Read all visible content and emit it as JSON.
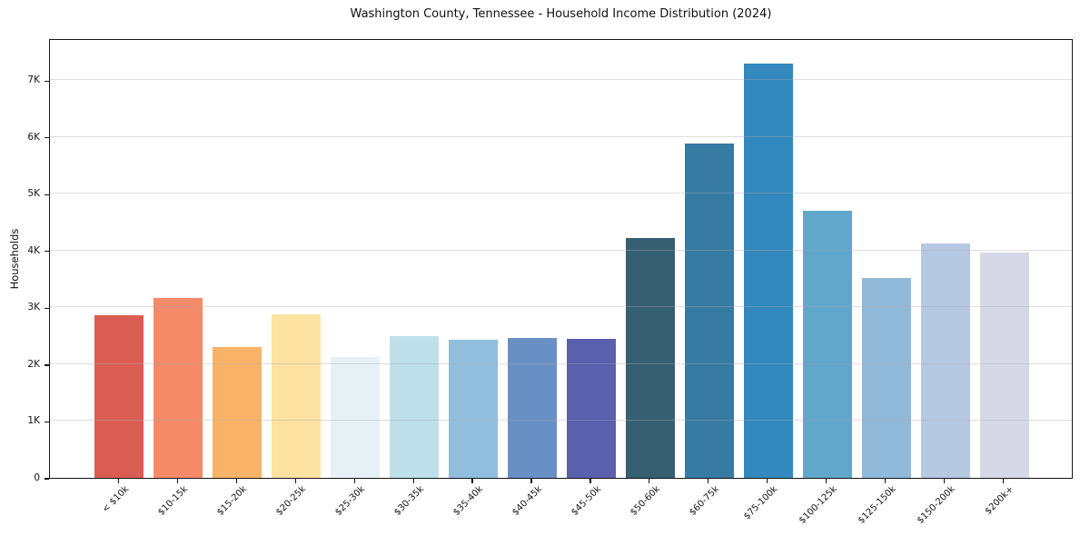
{
  "chart_data": {
    "type": "bar",
    "title": "Washington County, Tennessee - Household Income Distribution (2024)",
    "xlabel": "",
    "ylabel": "Households",
    "categories": [
      "< $10k",
      "$10-15k",
      "$15-20k",
      "$20-25k",
      "$25-30k",
      "$30-35k",
      "$35-40k",
      "$40-45k",
      "$45-50k",
      "$50-60k",
      "$60-75k",
      "$75-100k",
      "$100-125k",
      "$125-150k",
      "$150-200k",
      "$200k+"
    ],
    "values": [
      2870,
      3160,
      2300,
      2880,
      2120,
      2490,
      2430,
      2460,
      2440,
      4220,
      5880,
      7300,
      4700,
      3520,
      4120,
      3960
    ],
    "bar_colors": [
      "#db5c52",
      "#f58a68",
      "#f9b368",
      "#fde2a2",
      "#e6f1f5",
      "#bee0eb",
      "#92bedd",
      "#6890c4",
      "#5a5fae",
      "#375f72",
      "#377ba3",
      "#3389bd",
      "#60a7cb",
      "#90b8d8",
      "#b5c9e2",
      "#d6d8e7"
    ],
    "ylim": [
      0,
      7740
    ],
    "yticks": [
      {
        "value": 0,
        "label": "0"
      },
      {
        "value": 1000,
        "label": "1K"
      },
      {
        "value": 2000,
        "label": "2K"
      },
      {
        "value": 3000,
        "label": "3K"
      },
      {
        "value": 4000,
        "label": "4K"
      },
      {
        "value": 5000,
        "label": "5K"
      },
      {
        "value": 6000,
        "label": "6K"
      },
      {
        "value": 7000,
        "label": "7K"
      }
    ],
    "grid": "horizontal",
    "legend": "none",
    "background_color": "#ffffff",
    "spine_color": "#151515",
    "gridline_color": "#e7e7e7",
    "text_color": "#151515"
  }
}
